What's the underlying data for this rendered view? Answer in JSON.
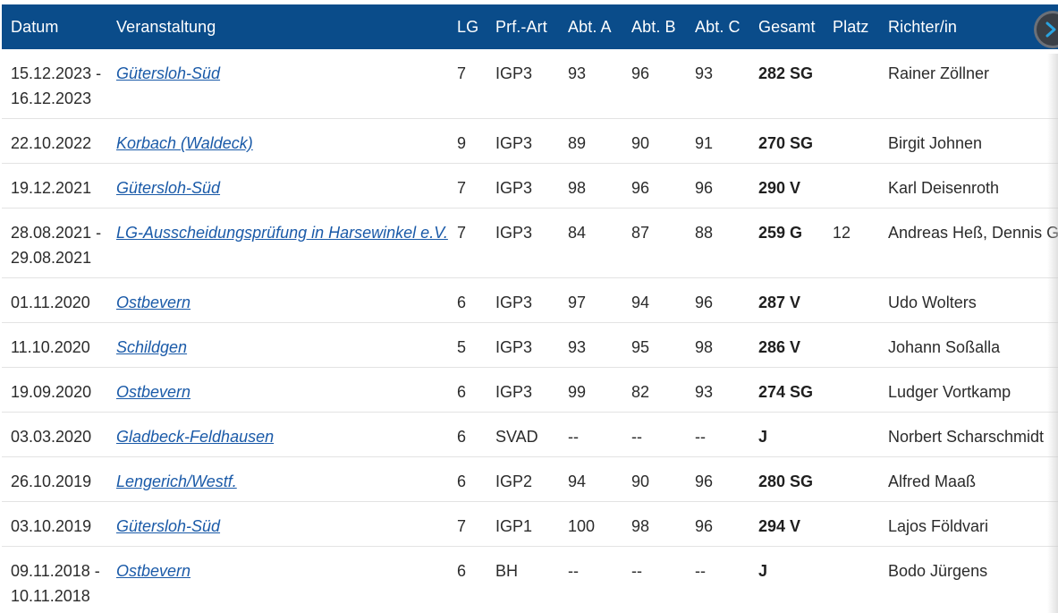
{
  "table": {
    "headers": {
      "date": "Datum",
      "event": "Veranstaltung",
      "lg": "LG",
      "type": "Prf.-Art",
      "abt_a": "Abt. A",
      "abt_b": "Abt. B",
      "abt_c": "Abt. C",
      "total": "Gesamt",
      "place": "Platz",
      "judge": "Richter/in"
    },
    "rows": [
      {
        "date1": "15.12.2023 -",
        "date2": "16.12.2023",
        "event": "Gütersloh-Süd",
        "lg": "7",
        "type": "IGP3",
        "abt_a": "93",
        "abt_b": "96",
        "abt_c": "93",
        "total": "282 SG",
        "place": "",
        "judge": "Rainer Zöllner"
      },
      {
        "date1": "22.10.2022",
        "date2": "",
        "event": "Korbach (Waldeck)",
        "lg": "9",
        "type": "IGP3",
        "abt_a": "89",
        "abt_b": "90",
        "abt_c": "91",
        "total": "270 SG",
        "place": "",
        "judge": "Birgit Johnen"
      },
      {
        "date1": "19.12.2021",
        "date2": "",
        "event": "Gütersloh-Süd",
        "lg": "7",
        "type": "IGP3",
        "abt_a": "98",
        "abt_b": "96",
        "abt_c": "96",
        "total": "290 V",
        "place": "",
        "judge": "Karl Deisenroth"
      },
      {
        "date1": "28.08.2021 -",
        "date2": "29.08.2021",
        "event": "LG-Ausscheidungsprüfung in Harsewinkel e.V.",
        "lg": "7",
        "type": "IGP3",
        "abt_a": "84",
        "abt_b": "87",
        "abt_c": "88",
        "total": "259 G",
        "place": "12",
        "judge": "Andreas Heß, Dennis Gre"
      },
      {
        "date1": "01.11.2020",
        "date2": "",
        "event": "Ostbevern",
        "lg": "6",
        "type": "IGP3",
        "abt_a": "97",
        "abt_b": "94",
        "abt_c": "96",
        "total": "287 V",
        "place": "",
        "judge": "Udo Wolters"
      },
      {
        "date1": "11.10.2020",
        "date2": "",
        "event": "Schildgen",
        "lg": "5",
        "type": "IGP3",
        "abt_a": "93",
        "abt_b": "95",
        "abt_c": "98",
        "total": "286 V",
        "place": "",
        "judge": "Johann Soßalla"
      },
      {
        "date1": "19.09.2020",
        "date2": "",
        "event": "Ostbevern",
        "lg": "6",
        "type": "IGP3",
        "abt_a": "99",
        "abt_b": "82",
        "abt_c": "93",
        "total": "274 SG",
        "place": "",
        "judge": "Ludger Vortkamp"
      },
      {
        "date1": "03.03.2020",
        "date2": "",
        "event": "Gladbeck-Feldhausen",
        "lg": "6",
        "type": "SVAD",
        "abt_a": "--",
        "abt_b": "--",
        "abt_c": "--",
        "total": "J",
        "place": "",
        "judge": "Norbert Scharschmidt"
      },
      {
        "date1": "26.10.2019",
        "date2": "",
        "event": "Lengerich/Westf.",
        "lg": "6",
        "type": "IGP2",
        "abt_a": "94",
        "abt_b": "90",
        "abt_c": "96",
        "total": "280 SG",
        "place": "",
        "judge": "Alfred Maaß"
      },
      {
        "date1": "03.10.2019",
        "date2": "",
        "event": "Gütersloh-Süd",
        "lg": "7",
        "type": "IGP1",
        "abt_a": "100",
        "abt_b": "98",
        "abt_c": "96",
        "total": "294 V",
        "place": "",
        "judge": "Lajos Földvari"
      },
      {
        "date1": "09.11.2018 -",
        "date2": "10.11.2018",
        "event": "Ostbevern",
        "lg": "6",
        "type": "BH",
        "abt_a": "--",
        "abt_b": "--",
        "abt_c": "--",
        "total": "J",
        "place": "",
        "judge": "Bodo Jürgens"
      }
    ]
  },
  "scroll_button": {
    "icon": "chevron-right-icon"
  },
  "colors": {
    "header_bg": "#0a4c8a",
    "link": "#1a5aa8"
  }
}
